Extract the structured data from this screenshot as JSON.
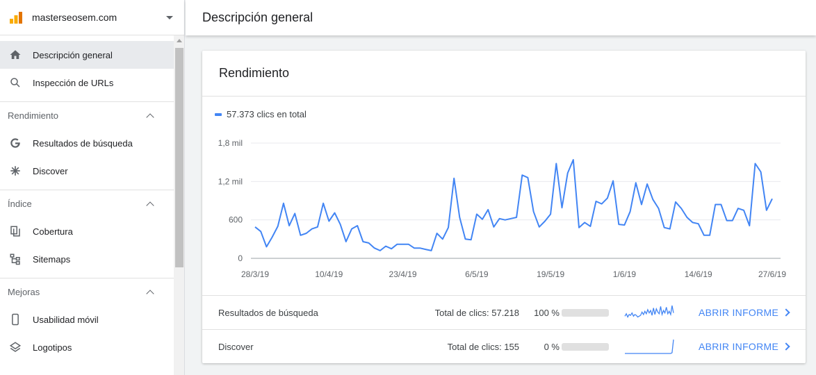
{
  "property": {
    "name": "masterseosem.com"
  },
  "sidebar": {
    "top_items": [
      {
        "label": "Descripción general",
        "icon": "home-icon"
      },
      {
        "label": "Inspección de URLs",
        "icon": "search-icon"
      }
    ],
    "sections": [
      {
        "title": "Rendimiento",
        "items": [
          {
            "label": "Resultados de búsqueda",
            "icon": "google-g-icon"
          },
          {
            "label": "Discover",
            "icon": "asterisk-icon"
          }
        ]
      },
      {
        "title": "Índice",
        "items": [
          {
            "label": "Cobertura",
            "icon": "copy-icon"
          },
          {
            "label": "Sitemaps",
            "icon": "sitemap-icon"
          }
        ]
      },
      {
        "title": "Mejoras",
        "items": [
          {
            "label": "Usabilidad móvil",
            "icon": "phone-icon"
          },
          {
            "label": "Logotipos",
            "icon": "layers-icon"
          }
        ]
      }
    ]
  },
  "header": {
    "title": "Descripción general"
  },
  "card": {
    "title": "Rendimiento",
    "legend": "57.373 clics en total",
    "rows": [
      {
        "label": "Resultados de búsqueda",
        "total": "Total de clics: 57.218",
        "percent": "100 %",
        "fraction": 1.0,
        "link": "ABRIR INFORME"
      },
      {
        "label": "Discover",
        "total": "Total de clics: 155",
        "percent": "0 %",
        "fraction": 0.0,
        "link": "ABRIR INFORME"
      }
    ]
  },
  "colors": {
    "accent": "#4285f4",
    "active_bg": "#e8eaed"
  },
  "chart_data": {
    "type": "line",
    "x_tick_labels": [
      "28/3/19",
      "10/4/19",
      "23/4/19",
      "6/5/19",
      "19/5/19",
      "1/6/19",
      "14/6/19",
      "27/6/19"
    ],
    "y_tick_labels": [
      "0",
      "600",
      "1,2 mil",
      "1,8 mil"
    ],
    "ylim": [
      0,
      1800
    ],
    "grid": true,
    "series": [
      {
        "name": "57.373 clics en total",
        "values": [
          490,
          420,
          180,
          330,
          500,
          860,
          510,
          700,
          360,
          390,
          460,
          490,
          860,
          580,
          710,
          530,
          260,
          460,
          510,
          260,
          240,
          160,
          120,
          190,
          150,
          220,
          220,
          220,
          160,
          160,
          140,
          120,
          390,
          300,
          480,
          1250,
          640,
          300,
          290,
          690,
          610,
          760,
          490,
          620,
          600,
          620,
          640,
          1300,
          1260,
          730,
          490,
          580,
          690,
          1480,
          790,
          1330,
          1540,
          480,
          560,
          500,
          890,
          850,
          940,
          1210,
          530,
          520,
          730,
          1180,
          840,
          1160,
          920,
          780,
          480,
          460,
          880,
          780,
          640,
          560,
          540,
          360,
          360,
          840,
          840,
          590,
          590,
          780,
          750,
          510,
          1480,
          1350,
          750,
          930
        ]
      }
    ],
    "sparklines": {
      "search": [
        20,
        35,
        15,
        30,
        25,
        40,
        20,
        30,
        25,
        15,
        20,
        25,
        45,
        30,
        50,
        35,
        60,
        40,
        55,
        25,
        70,
        30,
        65,
        45,
        35,
        80,
        30,
        55,
        40,
        75,
        35,
        50,
        30,
        85,
        40
      ],
      "discover": [
        0,
        0,
        0,
        0,
        0,
        0,
        0,
        0,
        0,
        0,
        0,
        0,
        0,
        0,
        0,
        0,
        0,
        0,
        0,
        0,
        0,
        0,
        0,
        0,
        0,
        0,
        0,
        0,
        0,
        0,
        0,
        0,
        0,
        5,
        100
      ]
    }
  }
}
